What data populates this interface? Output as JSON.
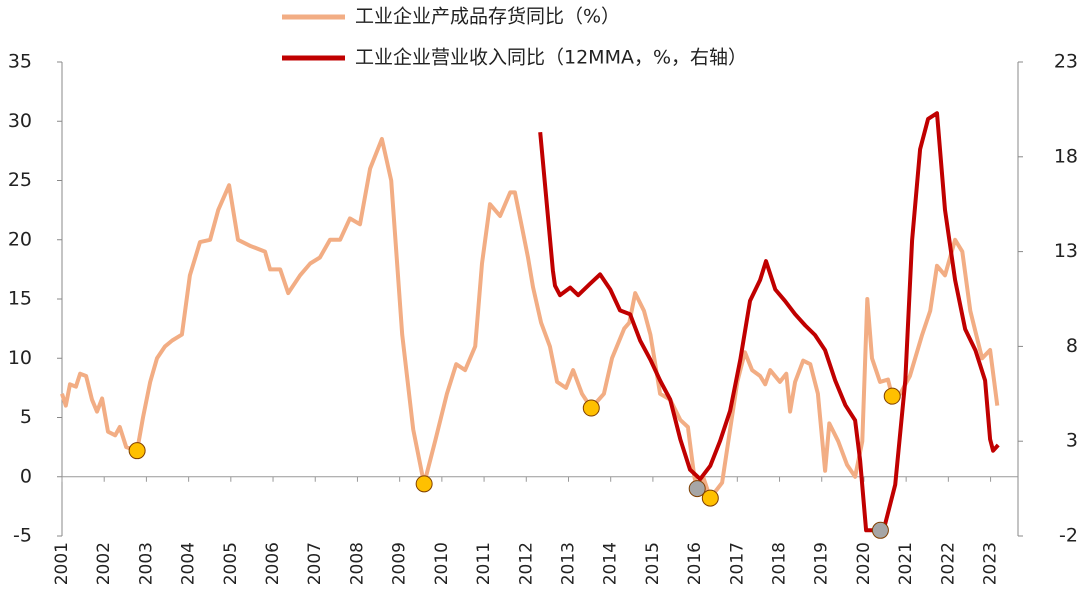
{
  "chart_data": {
    "type": "line",
    "xlim": [
      2001,
      2023.65
    ],
    "xticks": [
      2001,
      2002,
      2003,
      2004,
      2005,
      2006,
      2007,
      2008,
      2009,
      2010,
      2011,
      2012,
      2013,
      2014,
      2015,
      2016,
      2017,
      2018,
      2019,
      2020,
      2021,
      2022,
      2023
    ],
    "ylim": [
      -5,
      35
    ],
    "yticks": [
      -5,
      0,
      5,
      10,
      15,
      20,
      25,
      30,
      35
    ],
    "y2lim": [
      -2,
      23
    ],
    "y2ticks": [
      -2,
      3,
      8,
      13,
      18,
      23
    ],
    "series": [
      {
        "name": "工业企业产成品存货同比（%）",
        "color": "#f2ad84",
        "x": [
          2001.0,
          2001.09,
          2001.19,
          2001.33,
          2001.43,
          2001.57,
          2001.71,
          2001.83,
          2001.95,
          2002.09,
          2002.26,
          2002.37,
          2002.52,
          2002.78,
          2002.92,
          2003.09,
          2003.25,
          2003.44,
          2003.61,
          2003.84,
          2004.03,
          2004.27,
          2004.51,
          2004.7,
          2004.96,
          2005.17,
          2005.45,
          2005.81,
          2005.93,
          2006.17,
          2006.36,
          2006.64,
          2006.88,
          2007.11,
          2007.35,
          2007.59,
          2007.82,
          2008.06,
          2008.3,
          2008.58,
          2008.8,
          2009.06,
          2009.32,
          2009.58,
          2009.84,
          2010.12,
          2010.34,
          2010.55,
          2010.79,
          2010.95,
          2011.14,
          2011.38,
          2011.62,
          2011.73,
          2011.9,
          2012.04,
          2012.16,
          2012.35,
          2012.56,
          2012.73,
          2012.94,
          2013.11,
          2013.32,
          2013.54,
          2013.84,
          2014.03,
          2014.32,
          2014.44,
          2014.58,
          2014.79,
          2014.94,
          2015.17,
          2015.41,
          2015.65,
          2015.83,
          2015.98,
          2016.05,
          2016.19,
          2016.36,
          2016.64,
          2016.83,
          2017.0,
          2017.18,
          2017.35,
          2017.54,
          2017.66,
          2017.78,
          2018.01,
          2018.16,
          2018.25,
          2018.37,
          2018.56,
          2018.73,
          2018.91,
          2019.08,
          2019.18,
          2019.39,
          2019.6,
          2019.79,
          2019.96,
          2020.08,
          2020.19,
          2020.38,
          2020.57,
          2020.67,
          2020.86,
          2021.09,
          2021.38,
          2021.57,
          2021.73,
          2021.92,
          2022.16,
          2022.33,
          2022.52,
          2022.66,
          2022.8,
          2022.99,
          2023.16
        ],
        "values": [
          7,
          6,
          7.8,
          7.6,
          8.7,
          8.5,
          6.5,
          5.5,
          6.6,
          3.8,
          3.5,
          4.2,
          2.5,
          2.2,
          5,
          8,
          10,
          11,
          11.5,
          12,
          17,
          19.8,
          20,
          22.5,
          24.6,
          20,
          19.5,
          19,
          17.5,
          17.5,
          15.5,
          17,
          18,
          18.5,
          20,
          20,
          21.8,
          21.3,
          26,
          28.5,
          25,
          12,
          4,
          -0.6,
          3,
          7,
          9.5,
          9,
          11,
          18,
          23,
          22,
          24,
          24,
          21,
          18.5,
          16,
          13,
          11,
          8,
          7.5,
          9,
          7,
          5.8,
          7,
          10,
          12.5,
          13,
          15.5,
          14,
          12,
          7,
          6.5,
          4.8,
          4.2,
          0,
          -1,
          0,
          -1.8,
          -0.5,
          4,
          8,
          10.5,
          9,
          8.5,
          7.8,
          9,
          8,
          8.7,
          5.5,
          8,
          9.8,
          9.5,
          7,
          0.5,
          4.5,
          3,
          1,
          0,
          3,
          15,
          10,
          8,
          8.2,
          6.8,
          7,
          8.5,
          12,
          14,
          17.8,
          17,
          20,
          19,
          14,
          12,
          10,
          10.7,
          6
        ]
      },
      {
        "name": "工业企业营业收入同比（12MMA，%，右轴）",
        "color": "#c00000",
        "axis": "y2",
        "x": [
          2012.33,
          2012.63,
          2012.68,
          2012.8,
          2013.04,
          2013.23,
          2013.51,
          2013.75,
          2013.99,
          2014.22,
          2014.46,
          2014.7,
          2014.94,
          2015.17,
          2015.41,
          2015.65,
          2015.88,
          2016.12,
          2016.36,
          2016.59,
          2016.83,
          2017.07,
          2017.3,
          2017.54,
          2017.68,
          2017.9,
          2018.13,
          2018.37,
          2018.61,
          2018.84,
          2019.08,
          2019.32,
          2019.56,
          2019.79,
          2019.91,
          2020.05,
          2020.27,
          2020.5,
          2020.74,
          2020.98,
          2021.14,
          2021.33,
          2021.52,
          2021.73,
          2021.92,
          2022.16,
          2022.4,
          2022.64,
          2022.87,
          2022.99,
          2023.06,
          2023.18
        ],
        "values": [
          19.3,
          12.0,
          11.2,
          10.7,
          11.1,
          10.7,
          11.3,
          11.8,
          11,
          9.9,
          9.7,
          8.3,
          7.3,
          6.2,
          5.2,
          3.1,
          1.5,
          1.0,
          1.7,
          3,
          4.6,
          7.3,
          10.4,
          11.5,
          12.5,
          11,
          10.4,
          9.7,
          9.1,
          8.6,
          7.8,
          6.2,
          4.9,
          4.1,
          2.0,
          -1.7,
          -1.7,
          -1.4,
          0.7,
          6.2,
          13.6,
          18.4,
          20.0,
          20.3,
          15.2,
          11.5,
          8.9,
          7.8,
          6.2,
          3.1,
          2.5,
          2.8
        ]
      }
    ],
    "markers": [
      {
        "x": 2002.78,
        "y": 2.2,
        "color": "#ffc000"
      },
      {
        "x": 2009.58,
        "y": -0.6,
        "color": "#ffc000"
      },
      {
        "x": 2013.54,
        "y": 5.8,
        "color": "#ffc000"
      },
      {
        "x": 2016.05,
        "y": -1,
        "color": "#a6a6a6"
      },
      {
        "x": 2016.36,
        "y": -1.8,
        "color": "#ffc000"
      },
      {
        "x": 2020.39,
        "y": -1.7,
        "color": "#a6a6a6",
        "axis": "y2"
      },
      {
        "x": 2020.67,
        "y": 6.8,
        "color": "#ffc000"
      }
    ]
  }
}
